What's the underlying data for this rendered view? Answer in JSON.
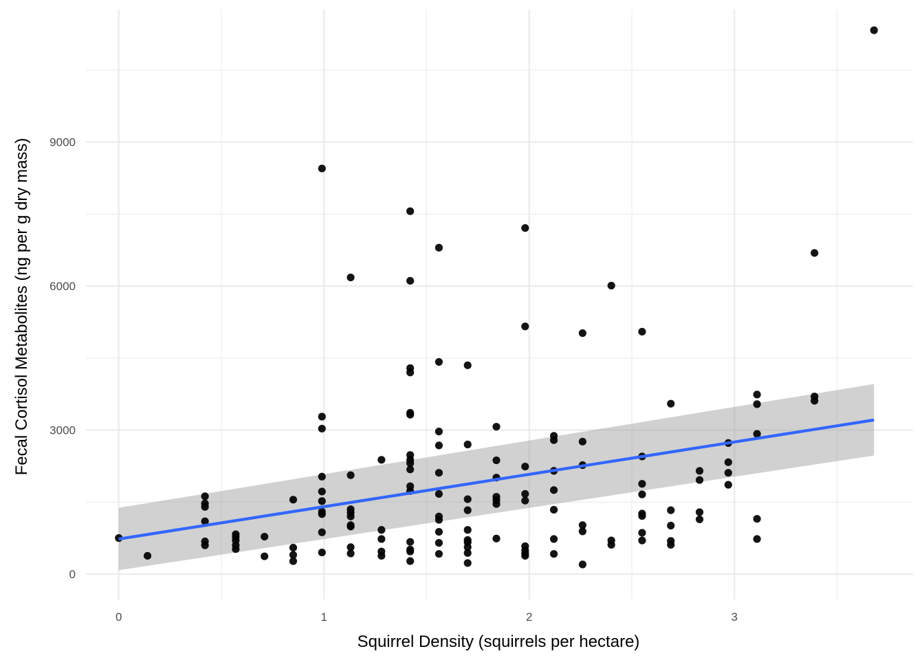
{
  "chart_data": {
    "type": "scatter",
    "title": "",
    "xlabel": "Squirrel Density (squirrels per hectare)",
    "ylabel": "Fecal Cortisol Metabolites (ng per g dry mass)",
    "xlim": [
      -0.16,
      3.87
    ],
    "ylim": [
      -530,
      11760
    ],
    "x_ticks": [
      0,
      1,
      2,
      3
    ],
    "x_tick_labels": [
      "0",
      "1",
      "2",
      "3"
    ],
    "y_ticks": [
      0,
      3000,
      6000,
      9000
    ],
    "y_tick_labels": [
      "0",
      "3000",
      "6000",
      "9000"
    ],
    "grid": true,
    "legend": "none",
    "colors": {
      "points": "#000000",
      "fit_line": "#3366FF",
      "ribbon": "#999999",
      "grid": "#EBEBEB"
    },
    "points": [
      [
        0,
        750
      ],
      [
        0.14,
        380
      ],
      [
        0.42,
        1620
      ],
      [
        0.42,
        1470
      ],
      [
        0.42,
        1400
      ],
      [
        0.42,
        1100
      ],
      [
        0.42,
        680
      ],
      [
        0.42,
        600
      ],
      [
        0.57,
        830
      ],
      [
        0.57,
        770
      ],
      [
        0.57,
        700
      ],
      [
        0.57,
        600
      ],
      [
        0.57,
        520
      ],
      [
        0.71,
        780
      ],
      [
        0.71,
        370
      ],
      [
        0.85,
        1550
      ],
      [
        0.85,
        550
      ],
      [
        0.85,
        400
      ],
      [
        0.85,
        270
      ],
      [
        0.99,
        8450
      ],
      [
        0.99,
        3280
      ],
      [
        0.99,
        3030
      ],
      [
        0.99,
        2030
      ],
      [
        0.99,
        1720
      ],
      [
        0.99,
        1520
      ],
      [
        0.99,
        1300
      ],
      [
        0.99,
        1250
      ],
      [
        0.99,
        870
      ],
      [
        0.99,
        450
      ],
      [
        1.13,
        6180
      ],
      [
        1.13,
        2060
      ],
      [
        1.13,
        1350
      ],
      [
        1.13,
        1280
      ],
      [
        1.13,
        1200
      ],
      [
        1.13,
        1020
      ],
      [
        1.13,
        990
      ],
      [
        1.13,
        560
      ],
      [
        1.13,
        430
      ],
      [
        1.28,
        2380
      ],
      [
        1.28,
        920
      ],
      [
        1.28,
        730
      ],
      [
        1.28,
        470
      ],
      [
        1.28,
        380
      ],
      [
        1.42,
        7560
      ],
      [
        1.42,
        6110
      ],
      [
        1.42,
        4290
      ],
      [
        1.42,
        4200
      ],
      [
        1.42,
        3360
      ],
      [
        1.42,
        3320
      ],
      [
        1.42,
        2480
      ],
      [
        1.42,
        2380
      ],
      [
        1.42,
        2310
      ],
      [
        1.42,
        2180
      ],
      [
        1.42,
        1830
      ],
      [
        1.42,
        1730
      ],
      [
        1.42,
        670
      ],
      [
        1.42,
        510
      ],
      [
        1.42,
        470
      ],
      [
        1.42,
        270
      ],
      [
        1.56,
        6800
      ],
      [
        1.56,
        4420
      ],
      [
        1.56,
        2970
      ],
      [
        1.56,
        2680
      ],
      [
        1.56,
        2110
      ],
      [
        1.56,
        1670
      ],
      [
        1.56,
        1200
      ],
      [
        1.56,
        1130
      ],
      [
        1.56,
        880
      ],
      [
        1.56,
        650
      ],
      [
        1.56,
        420
      ],
      [
        1.7,
        4350
      ],
      [
        1.7,
        2700
      ],
      [
        1.7,
        1560
      ],
      [
        1.7,
        1330
      ],
      [
        1.7,
        920
      ],
      [
        1.7,
        710
      ],
      [
        1.7,
        660
      ],
      [
        1.7,
        560
      ],
      [
        1.7,
        440
      ],
      [
        1.7,
        230
      ],
      [
        1.84,
        3070
      ],
      [
        1.84,
        2370
      ],
      [
        1.84,
        2010
      ],
      [
        1.84,
        1610
      ],
      [
        1.84,
        1540
      ],
      [
        1.84,
        1460
      ],
      [
        1.84,
        740
      ],
      [
        1.98,
        7210
      ],
      [
        1.98,
        5160
      ],
      [
        1.98,
        2240
      ],
      [
        1.98,
        1670
      ],
      [
        1.98,
        1530
      ],
      [
        1.98,
        580
      ],
      [
        1.98,
        490
      ],
      [
        1.98,
        430
      ],
      [
        1.98,
        380
      ],
      [
        2.12,
        2880
      ],
      [
        2.12,
        2790
      ],
      [
        2.12,
        2150
      ],
      [
        2.12,
        1750
      ],
      [
        2.12,
        1340
      ],
      [
        2.12,
        730
      ],
      [
        2.12,
        420
      ],
      [
        2.26,
        5020
      ],
      [
        2.26,
        2760
      ],
      [
        2.26,
        2270
      ],
      [
        2.26,
        1020
      ],
      [
        2.26,
        890
      ],
      [
        2.26,
        200
      ],
      [
        2.4,
        6010
      ],
      [
        2.4,
        700
      ],
      [
        2.4,
        610
      ],
      [
        2.55,
        5050
      ],
      [
        2.55,
        2450
      ],
      [
        2.55,
        1880
      ],
      [
        2.55,
        1660
      ],
      [
        2.55,
        1260
      ],
      [
        2.55,
        1210
      ],
      [
        2.55,
        860
      ],
      [
        2.55,
        700
      ],
      [
        2.69,
        3550
      ],
      [
        2.69,
        1330
      ],
      [
        2.69,
        1010
      ],
      [
        2.69,
        690
      ],
      [
        2.69,
        610
      ],
      [
        2.83,
        2150
      ],
      [
        2.83,
        1960
      ],
      [
        2.83,
        1290
      ],
      [
        2.83,
        1140
      ],
      [
        2.97,
        2730
      ],
      [
        2.97,
        2330
      ],
      [
        2.97,
        2110
      ],
      [
        2.97,
        1860
      ],
      [
        3.11,
        3740
      ],
      [
        3.11,
        3540
      ],
      [
        3.11,
        2920
      ],
      [
        3.11,
        1150
      ],
      [
        3.11,
        730
      ],
      [
        3.39,
        6690
      ],
      [
        3.39,
        3700
      ],
      [
        3.39,
        3610
      ],
      [
        3.68,
        11330
      ]
    ],
    "fit": {
      "method": "linear",
      "x": [
        0,
        3.68
      ],
      "y": [
        730,
        3210
      ],
      "ci_lower": [
        80,
        2470
      ],
      "ci_upper": [
        1380,
        3960
      ]
    }
  }
}
